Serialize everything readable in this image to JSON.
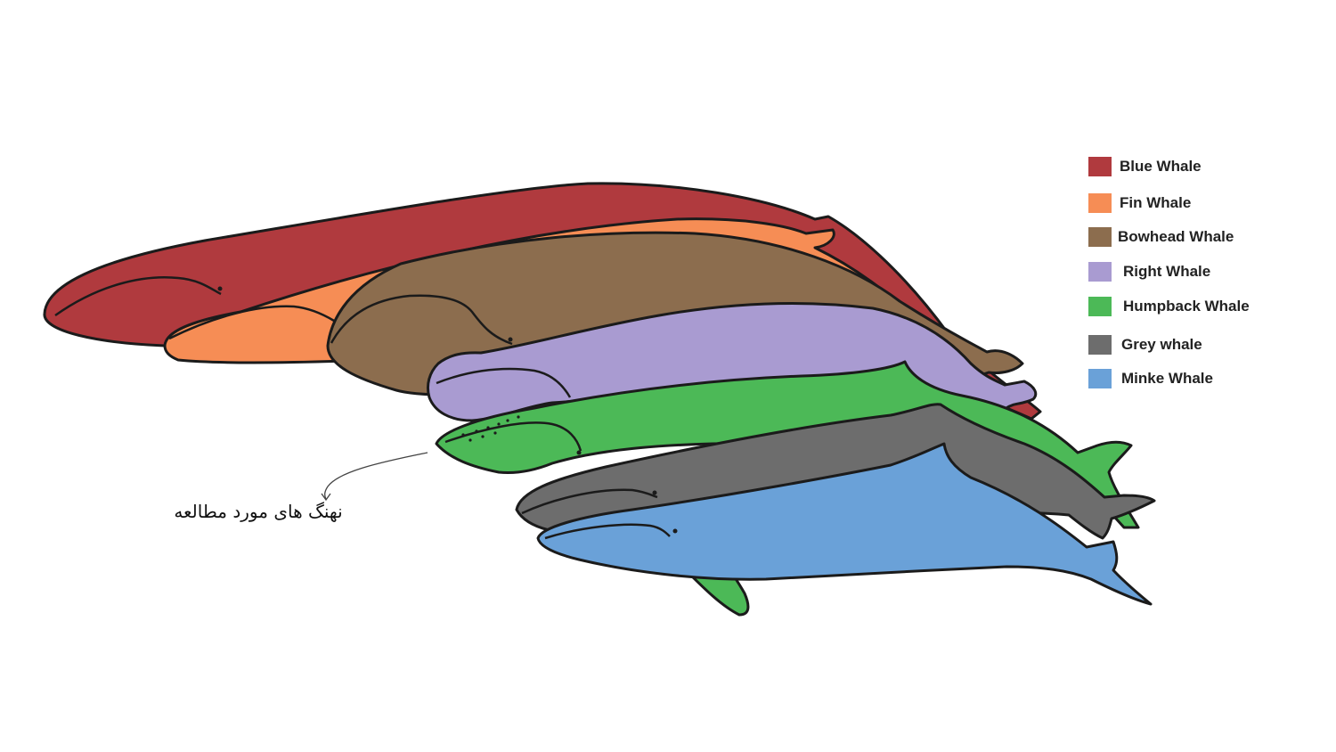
{
  "legend": [
    {
      "label": "Blue Whale",
      "color": "#b03a3e"
    },
    {
      "label": "Fin Whale",
      "color": "#f68d55"
    },
    {
      "label": "Bowhead Whale",
      "color": "#8c6d4e"
    },
    {
      "label": "Right Whale",
      "color": "#a99bd1"
    },
    {
      "label": "Humpback Whale",
      "color": "#4cb957"
    },
    {
      "label": "Grey whale",
      "color": "#6d6d6d"
    },
    {
      "label": "Minke Whale",
      "color": "#6aa1d8"
    }
  ],
  "caption": "نهنگ های مورد مطالعه",
  "outline_color": "#1b1b1b"
}
